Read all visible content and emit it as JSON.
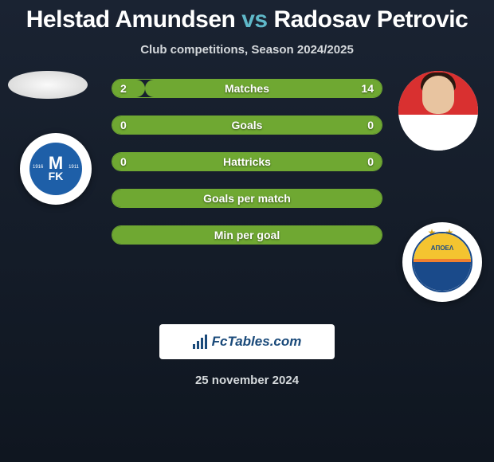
{
  "header": {
    "player1": "Helstad Amundsen",
    "vs": "vs",
    "player2": "Radosav Petrovic",
    "subtitle": "Club competitions, Season 2024/2025"
  },
  "stats": [
    {
      "label": "Matches",
      "left_val": "2",
      "right_val": "14",
      "left_pct": 12,
      "right_pct": 88
    },
    {
      "label": "Goals",
      "left_val": "0",
      "right_val": "0",
      "left_pct": 0,
      "right_pct": 100
    },
    {
      "label": "Hattricks",
      "left_val": "0",
      "right_val": "0",
      "left_pct": 0,
      "right_pct": 100
    },
    {
      "label": "Goals per match",
      "left_val": "",
      "right_val": "",
      "left_pct": 0,
      "right_pct": 100
    },
    {
      "label": "Min per goal",
      "left_val": "",
      "right_val": "",
      "left_pct": 0,
      "right_pct": 100
    }
  ],
  "club1": {
    "short_top": "M",
    "short_bot": "FK",
    "year_left": "1916",
    "year_right": "1911"
  },
  "club2": {
    "stars": "★ ★",
    "text": "ΑΠΟΕΛ"
  },
  "brand": {
    "text": "FcTables.com"
  },
  "date": "25 november 2024",
  "colors": {
    "accent_bar": "#6fa832",
    "title_accent": "#5fb8c9",
    "bg_top": "#1a2332",
    "bg_bot": "#0f1620"
  }
}
